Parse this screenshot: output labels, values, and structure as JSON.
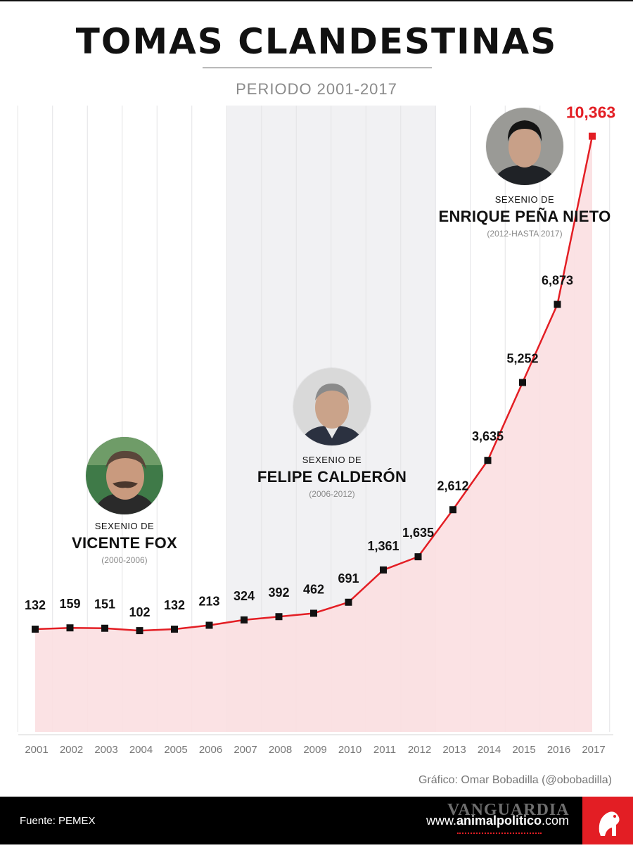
{
  "header": {
    "title": "TOMAS CLANDESTINAS",
    "subtitle": "PERIODO 2001-2017"
  },
  "colors": {
    "line": "#e31e24",
    "area": "#fbdfe1",
    "calderon_band": "#f1f1f3",
    "marker": "#111111",
    "highlight": "#e31e24",
    "footer_bg": "#000000"
  },
  "presidents": [
    {
      "id": "fox",
      "pre": "SEXENIO DE",
      "name": "VICENTE FOX",
      "term": "(2000-2006)",
      "photo": "portrait-vicente-fox"
    },
    {
      "id": "calderon",
      "pre": "SEXENIO DE",
      "name": "FELIPE CALDERÓN",
      "term": "(2006-2012)",
      "photo": "portrait-felipe-calderon"
    },
    {
      "id": "pena",
      "pre": "SEXENIO DE",
      "name": "ENRIQUE PEÑA NIETO",
      "term": "(2012-HASTA 2017)",
      "photo": "portrait-enrique-pena-nieto"
    }
  ],
  "chart_data": {
    "type": "area",
    "x": [
      "2001",
      "2002",
      "2003",
      "2004",
      "2005",
      "2006",
      "2007",
      "2008",
      "2009",
      "2010",
      "2011",
      "2012",
      "2013",
      "2014",
      "2015",
      "2016",
      "2017"
    ],
    "series": [
      {
        "values": [
          132,
          159,
          151,
          102,
          132,
          213,
          324,
          392,
          462,
          691,
          1361,
          1635,
          2612,
          3635,
          5252,
          6873,
          10363
        ],
        "labels": [
          "132",
          "159",
          "151",
          "102",
          "132",
          "213",
          "324",
          "392",
          "462",
          "691",
          "1,361",
          "1,635",
          "2,612",
          "3,635",
          "5,252",
          "6,873",
          "10,363"
        ]
      }
    ],
    "highlight_index": 16,
    "shaded_band": {
      "from": "2006.5",
      "to": "2012.5",
      "label": "FELIPE CALDERÓN"
    },
    "ylim": [
      -2000,
      11000
    ],
    "grid": "vertical",
    "title": "TOMAS CLANDESTINAS",
    "subtitle": "PERIODO 2001-2017"
  },
  "footer": {
    "credit": "Gráfico: Omar Bobadilla (@obobadilla)",
    "source": "Fuente: PEMEX",
    "site_prefix": "www.",
    "site_bold": "animalpolitico",
    "site_suffix": ".com",
    "watermark": "VANGUARDIA"
  }
}
